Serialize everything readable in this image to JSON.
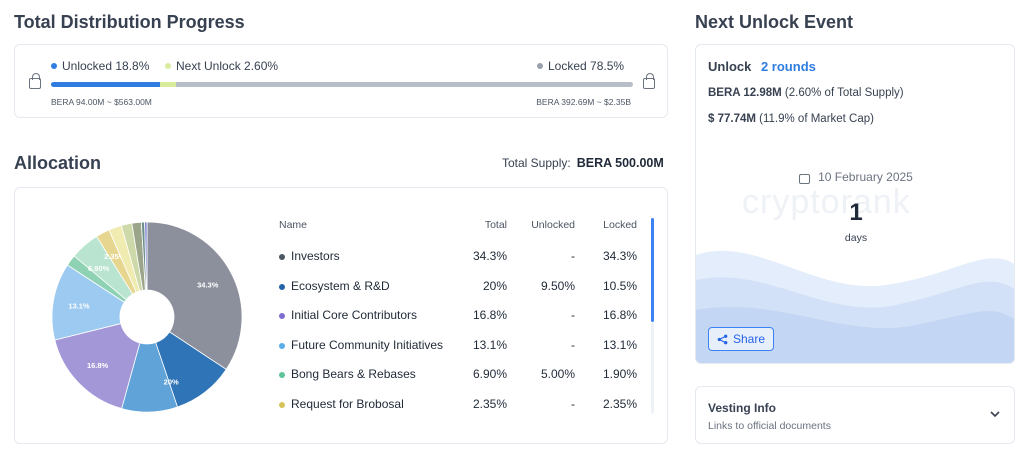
{
  "progress": {
    "title": "Total Distribution Progress",
    "unlocked_label": "Unlocked 18.8%",
    "next_unlock_label": "Next Unlock 2.60%",
    "locked_label": "Locked 78.5%",
    "unlocked_pct": 18.8,
    "next_unlock_pct": 2.6,
    "locked_pct": 78.5,
    "unlocked_sub": "BERA 94.00M ~ $563.00M",
    "locked_sub": "BERA 392.69M ~ $2.35B",
    "colors": {
      "unlocked": "#2f7de1",
      "next": "#d9ec9c",
      "locked": "#b8bec8"
    }
  },
  "allocation": {
    "title": "Allocation",
    "total_supply_label": "Total Supply:",
    "total_supply_value": "BERA 500.00M",
    "columns": [
      "Name",
      "Total",
      "Unlocked",
      "Locked"
    ],
    "rows": [
      {
        "name": "Investors",
        "total": "34.3%",
        "unlocked": "-",
        "locked": "34.3%",
        "color": "#4b5563"
      },
      {
        "name": "Ecosystem & R&D",
        "total": "20%",
        "unlocked": "9.50%",
        "locked": "10.5%",
        "color": "#2563a8"
      },
      {
        "name": "Initial Core Contributors",
        "total": "16.8%",
        "unlocked": "-",
        "locked": "16.8%",
        "color": "#7c6fcf"
      },
      {
        "name": "Future Community Initiatives",
        "total": "13.1%",
        "unlocked": "-",
        "locked": "13.1%",
        "color": "#5aaee8"
      },
      {
        "name": "Bong Bears & Rebases",
        "total": "6.90%",
        "unlocked": "5.00%",
        "locked": "1.90%",
        "color": "#5fc49a"
      },
      {
        "name": "Request for Brobosal",
        "total": "2.35%",
        "unlocked": "-",
        "locked": "2.35%",
        "color": "#d7c25a"
      }
    ]
  },
  "chart_data": {
    "type": "pie",
    "slices": [
      {
        "label": "34.3%",
        "value": 34.3,
        "unlocked_share": 0,
        "color": "#8b909c",
        "unlocked_color": "#8b909c"
      },
      {
        "label": "20%",
        "value": 20,
        "unlocked_share": 0.475,
        "color": "#2f74b7",
        "unlocked_color": "#5fa3d8"
      },
      {
        "label": "16.8%",
        "value": 16.8,
        "unlocked_share": 0,
        "color": "#a497d8",
        "unlocked_color": "#a497d8"
      },
      {
        "label": "13.1%",
        "value": 13.1,
        "unlocked_share": 0,
        "color": "#9ccaf0",
        "unlocked_color": "#9ccaf0"
      },
      {
        "label": "6.90%",
        "value": 6.9,
        "unlocked_share": 0.725,
        "color": "#8fd2b3",
        "unlocked_color": "#b9e4cf"
      },
      {
        "label": "2.35%",
        "value": 2.35,
        "unlocked_share": 0,
        "color": "#e6d68f",
        "unlocked_color": "#e6d68f"
      },
      {
        "label": "",
        "value": 2.2,
        "unlocked_share": 0,
        "color": "#f0ebb0",
        "unlocked_color": "#f0ebb0"
      },
      {
        "label": "",
        "value": 1.8,
        "unlocked_share": 0,
        "color": "#cdd9a8",
        "unlocked_color": "#cdd9a8"
      },
      {
        "label": "",
        "value": 1.6,
        "unlocked_share": 0,
        "color": "#9aa58a",
        "unlocked_color": "#9aa58a"
      },
      {
        "label": "",
        "value": 0.55,
        "unlocked_share": 0,
        "color": "#6d8f8a",
        "unlocked_color": "#6d8f8a"
      },
      {
        "label": "",
        "value": 0.4,
        "unlocked_share": 0,
        "color": "#7a7fd0",
        "unlocked_color": "#7a7fd0"
      }
    ]
  },
  "next_unlock": {
    "title": "Next Unlock Event",
    "unlock_label": "Unlock",
    "rounds": "2 rounds",
    "bera_amount": "BERA 12.98M",
    "bera_note": "(2.60% of Total Supply)",
    "usd_amount": "$ 77.74M",
    "usd_note": "(11.9% of Market Cap)",
    "date": "10 February 2025",
    "countdown_value": "1",
    "countdown_unit": "days",
    "share_label": "Share",
    "watermark": "cryptorank"
  },
  "vesting": {
    "title": "Vesting Info",
    "subtitle": "Links to official documents"
  }
}
